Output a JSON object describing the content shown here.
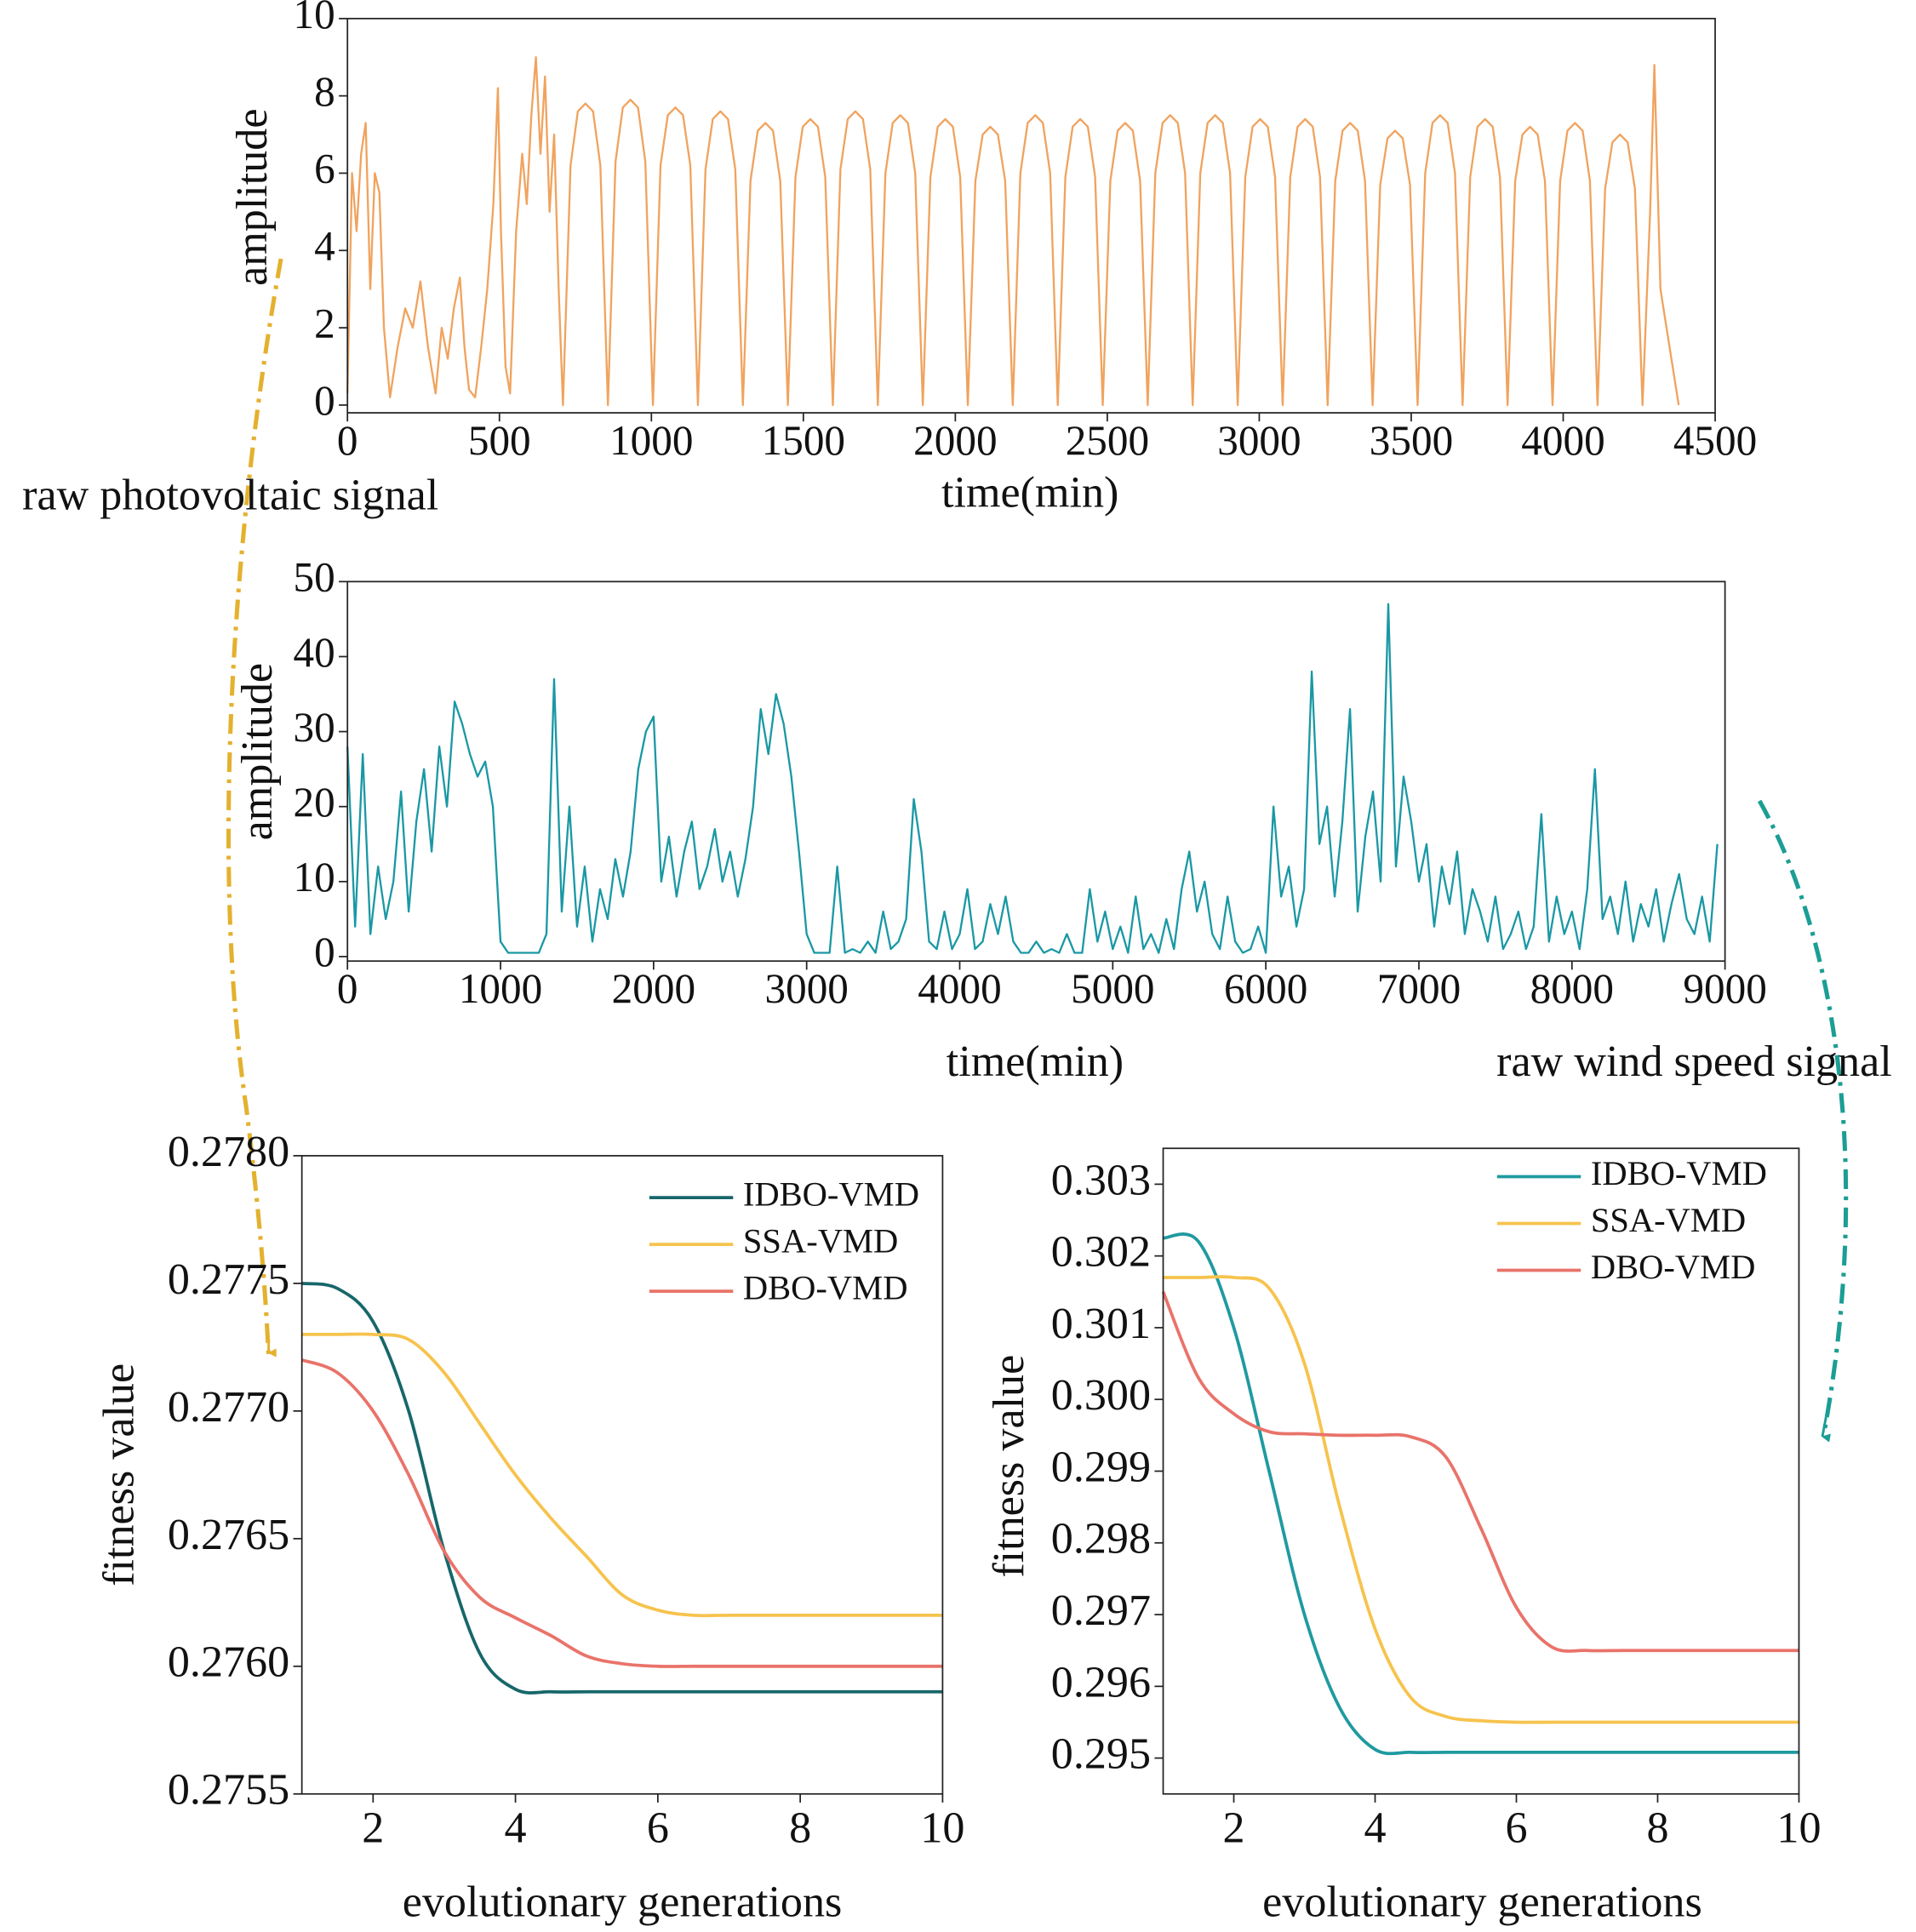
{
  "chart_data": [
    {
      "type": "line",
      "x_label": "time(min)",
      "y_label": "amplitude",
      "annotation": "raw photovoltaic signal",
      "color": "#f0a35e",
      "xlim": [
        0,
        4500
      ],
      "xticks": [
        0,
        500,
        1000,
        1500,
        2000,
        2500,
        3000,
        3500,
        4000,
        4500
      ],
      "ylim": [
        -0.2,
        10
      ],
      "yticks": [
        0,
        2,
        4,
        6,
        8,
        10
      ],
      "x": [
        0,
        15,
        30,
        45,
        60,
        75,
        90,
        105,
        120,
        140,
        165,
        190,
        215,
        240,
        265,
        290,
        310,
        330,
        350,
        370,
        385,
        400,
        420,
        440,
        460,
        480,
        495,
        505,
        520,
        535,
        555,
        575,
        590,
        605,
        620,
        635,
        650,
        665,
        680,
        695,
        709,
        734,
        758,
        783,
        808,
        832,
        857,
        882,
        906,
        931,
        956,
        980,
        1005,
        1030,
        1054,
        1079,
        1104,
        1128,
        1153,
        1178,
        1202,
        1227,
        1252,
        1276,
        1301,
        1326,
        1350,
        1375,
        1400,
        1424,
        1449,
        1474,
        1498,
        1523,
        1548,
        1572,
        1597,
        1622,
        1646,
        1671,
        1696,
        1720,
        1745,
        1770,
        1794,
        1819,
        1844,
        1868,
        1893,
        1918,
        1942,
        1967,
        1992,
        2016,
        2041,
        2066,
        2090,
        2115,
        2140,
        2164,
        2189,
        2214,
        2238,
        2263,
        2288,
        2312,
        2337,
        2362,
        2386,
        2411,
        2436,
        2460,
        2485,
        2510,
        2534,
        2559,
        2584,
        2608,
        2633,
        2658,
        2682,
        2707,
        2732,
        2756,
        2781,
        2806,
        2830,
        2855,
        2880,
        2904,
        2929,
        2954,
        2978,
        3003,
        3028,
        3052,
        3077,
        3102,
        3126,
        3151,
        3176,
        3200,
        3225,
        3250,
        3274,
        3299,
        3324,
        3348,
        3373,
        3398,
        3422,
        3447,
        3472,
        3496,
        3521,
        3546,
        3570,
        3595,
        3620,
        3644,
        3669,
        3694,
        3718,
        3743,
        3768,
        3792,
        3817,
        3842,
        3866,
        3891,
        3916,
        3940,
        3965,
        3990,
        4014,
        4039,
        4064,
        4088,
        4113,
        4138,
        4162,
        4187,
        4212,
        4236,
        4261,
        4286,
        4300,
        4320,
        4340,
        4360,
        4380
      ],
      "values": [
        0.3,
        6,
        4.5,
        6.5,
        7.3,
        3,
        6,
        5.5,
        2,
        0.2,
        1.5,
        2.5,
        2,
        3.2,
        1.5,
        0.3,
        2,
        1.2,
        2.5,
        3.3,
        1.5,
        0.4,
        0.2,
        1.5,
        3,
        5.2,
        8.2,
        4.5,
        1,
        0.3,
        4.5,
        6.5,
        5.2,
        7.5,
        9,
        6.5,
        8.5,
        5,
        7,
        3,
        0,
        6.2,
        7.6,
        7.8,
        7.6,
        6.2,
        0,
        6.3,
        7.7,
        7.9,
        7.7,
        6.3,
        0,
        6.2,
        7.5,
        7.7,
        7.5,
        6.2,
        0,
        6.1,
        7.4,
        7.6,
        7.4,
        6.1,
        0,
        5.8,
        7.1,
        7.3,
        7.1,
        5.8,
        0,
        5.9,
        7.2,
        7.4,
        7.2,
        5.9,
        0,
        6.1,
        7.4,
        7.6,
        7.4,
        6.1,
        0,
        6.0,
        7.3,
        7.5,
        7.3,
        6.0,
        0,
        5.9,
        7.2,
        7.4,
        7.2,
        5.9,
        0,
        5.8,
        7.0,
        7.2,
        7.0,
        5.8,
        0,
        6.0,
        7.3,
        7.5,
        7.3,
        6.0,
        0,
        5.9,
        7.2,
        7.4,
        7.2,
        5.9,
        0,
        5.8,
        7.1,
        7.3,
        7.1,
        5.8,
        0,
        6.0,
        7.3,
        7.5,
        7.3,
        6.0,
        0,
        6.0,
        7.3,
        7.5,
        7.3,
        6.0,
        0,
        5.9,
        7.2,
        7.4,
        7.2,
        5.9,
        0,
        5.9,
        7.2,
        7.4,
        7.2,
        5.9,
        0,
        5.8,
        7.1,
        7.3,
        7.1,
        5.8,
        0,
        5.7,
        6.9,
        7.1,
        6.9,
        5.7,
        0,
        6.0,
        7.3,
        7.5,
        7.3,
        6.0,
        0,
        5.9,
        7.2,
        7.4,
        7.2,
        5.9,
        0,
        5.8,
        7.0,
        7.2,
        7.0,
        5.8,
        0,
        5.8,
        7.1,
        7.3,
        7.1,
        5.8,
        0,
        5.6,
        6.8,
        7.0,
        6.8,
        5.6,
        0,
        5,
        8.8,
        3,
        2,
        1,
        0
      ]
    },
    {
      "type": "line",
      "x_label": "time(min)",
      "y_label": "amplitude",
      "annotation": "raw wind speed signal",
      "color": "#1a98a4",
      "xlim": [
        0,
        9000
      ],
      "xticks": [
        0,
        1000,
        2000,
        3000,
        4000,
        5000,
        6000,
        7000,
        8000,
        9000
      ],
      "ylim": [
        -0.6,
        50
      ],
      "yticks": [
        0,
        10,
        20,
        30,
        40,
        50
      ],
      "x": [
        0,
        50,
        100,
        150,
        200,
        250,
        300,
        350,
        400,
        450,
        500,
        550,
        600,
        650,
        700,
        750,
        800,
        850,
        900,
        950,
        1000,
        1050,
        1100,
        1150,
        1200,
        1250,
        1300,
        1350,
        1400,
        1450,
        1500,
        1550,
        1600,
        1650,
        1700,
        1750,
        1800,
        1850,
        1900,
        1950,
        2000,
        2050,
        2100,
        2150,
        2200,
        2250,
        2300,
        2350,
        2400,
        2450,
        2500,
        2550,
        2600,
        2650,
        2700,
        2750,
        2800,
        2850,
        2900,
        2950,
        3000,
        3050,
        3100,
        3150,
        3200,
        3250,
        3300,
        3350,
        3400,
        3450,
        3500,
        3550,
        3600,
        3650,
        3700,
        3750,
        3800,
        3850,
        3900,
        3950,
        4000,
        4050,
        4100,
        4150,
        4200,
        4250,
        4300,
        4350,
        4400,
        4450,
        4500,
        4550,
        4600,
        4650,
        4700,
        4750,
        4800,
        4850,
        4900,
        4950,
        5000,
        5050,
        5100,
        5150,
        5200,
        5250,
        5300,
        5350,
        5400,
        5450,
        5500,
        5550,
        5600,
        5650,
        5700,
        5750,
        5800,
        5850,
        5900,
        5950,
        6000,
        6050,
        6100,
        6150,
        6200,
        6250,
        6300,
        6350,
        6400,
        6450,
        6500,
        6550,
        6600,
        6650,
        6700,
        6750,
        6800,
        6850,
        6900,
        6950,
        7000,
        7050,
        7100,
        7150,
        7200,
        7250,
        7300,
        7350,
        7400,
        7450,
        7500,
        7550,
        7600,
        7650,
        7700,
        7750,
        7800,
        7850,
        7900,
        7950,
        8000,
        8050,
        8100,
        8150,
        8200,
        8250,
        8300,
        8350,
        8400,
        8450,
        8500,
        8550,
        8600,
        8650,
        8700,
        8750,
        8800,
        8850,
        8900,
        8950
      ],
      "values": [
        28,
        4,
        27,
        3,
        12,
        5,
        10,
        22,
        6,
        18,
        25,
        14,
        28,
        20,
        34,
        31,
        27,
        24,
        26,
        20,
        2,
        0.5,
        0.5,
        0.5,
        0.5,
        0.5,
        3,
        37,
        6,
        20,
        4,
        12,
        2,
        9,
        5,
        13,
        8,
        14,
        25,
        30,
        32,
        10,
        16,
        8,
        14,
        18,
        9,
        12,
        17,
        10,
        14,
        8,
        13,
        20,
        33,
        27,
        35,
        31,
        24,
        14,
        3,
        0.5,
        0.5,
        0.5,
        12,
        0.5,
        1,
        0.5,
        2,
        0.5,
        6,
        1,
        2,
        5,
        21,
        14,
        2,
        1,
        6,
        1,
        3,
        9,
        1,
        2,
        7,
        3,
        8,
        2,
        0.5,
        0.5,
        2,
        0.5,
        1,
        0.5,
        3,
        0.5,
        0.5,
        9,
        2,
        6,
        1,
        4,
        0.5,
        8,
        1,
        3,
        0.5,
        5,
        1,
        9,
        14,
        6,
        10,
        3,
        1,
        8,
        2,
        0.5,
        1,
        4,
        0.5,
        20,
        8,
        12,
        4,
        9,
        38,
        15,
        20,
        8,
        18,
        33,
        6,
        16,
        22,
        10,
        47,
        12,
        24,
        18,
        10,
        15,
        4,
        12,
        7,
        14,
        3,
        9,
        6,
        2,
        8,
        1,
        3,
        6,
        1,
        4,
        19,
        2,
        8,
        3,
        6,
        1,
        9,
        25,
        5,
        8,
        3,
        10,
        2,
        7,
        4,
        9,
        2,
        7,
        11,
        5,
        3,
        8,
        2,
        15
      ]
    },
    {
      "type": "line",
      "x_label": "evolutionary generations",
      "y_label": "fitness value",
      "legend": "upper right",
      "xlim": [
        1,
        10
      ],
      "xticks": [
        2,
        4,
        6,
        8,
        10
      ],
      "ylim": [
        0.2755,
        0.278
      ],
      "yticks": [
        0.2755,
        {
          "value": 0.276,
          "label": "0.2760"
        },
        0.2765,
        {
          "value": 0.277,
          "label": "0.2770"
        },
        0.2775,
        {
          "value": 0.278,
          "label": "0.2780"
        }
      ],
      "x": [
        1,
        1.5,
        2,
        2.5,
        3,
        3.5,
        4,
        4.5,
        5,
        5.5,
        6,
        6.5,
        7,
        7.5,
        8,
        8.5,
        9,
        9.5,
        10
      ],
      "series": [
        {
          "name": "IDBO-VMD",
          "color": "#17676a",
          "values": [
            0.2775,
            0.27748,
            0.27735,
            0.277,
            0.27645,
            0.27605,
            0.27591,
            0.2759,
            0.2759,
            0.2759,
            0.2759,
            0.2759,
            0.2759,
            0.2759,
            0.2759,
            0.2759,
            0.2759,
            0.2759,
            0.2759
          ]
        },
        {
          "name": "SSA-VMD",
          "color": "#f6c34d",
          "values": [
            0.2773,
            0.2773,
            0.2773,
            0.27728,
            0.27715,
            0.27695,
            0.27675,
            0.27658,
            0.27643,
            0.27628,
            0.27622,
            0.2762,
            0.2762,
            0.2762,
            0.2762,
            0.2762,
            0.2762,
            0.2762,
            0.2762
          ]
        },
        {
          "name": "DBO-VMD",
          "color": "#e9736a",
          "values": [
            0.2772,
            0.27715,
            0.277,
            0.27675,
            0.27645,
            0.27627,
            0.27619,
            0.27612,
            0.27604,
            0.27601,
            0.276,
            0.276,
            0.276,
            0.276,
            0.276,
            0.276,
            0.276,
            0.276,
            0.276
          ]
        }
      ]
    },
    {
      "type": "line",
      "x_label": "evolutionary generations",
      "y_label": "fitness value",
      "legend": "upper right",
      "xlim": [
        1,
        10
      ],
      "xticks": [
        2,
        4,
        6,
        8,
        10
      ],
      "ylim": [
        0.2945,
        0.3035
      ],
      "yticks": [
        0.295,
        0.296,
        0.297,
        0.298,
        0.299,
        {
          "value": 0.3,
          "label": "0.300"
        },
        0.301,
        0.302,
        0.303
      ],
      "x": [
        1,
        1.5,
        2,
        2.5,
        3,
        3.5,
        4,
        4.5,
        5,
        5.5,
        6,
        6.5,
        7,
        7.5,
        8,
        8.5,
        9,
        9.5,
        10
      ],
      "series": [
        {
          "name": "IDBO-VMD",
          "color": "#1f9aa0",
          "values": [
            0.30225,
            0.3022,
            0.301,
            0.299,
            0.297,
            0.2957,
            0.29512,
            0.29508,
            0.29508,
            0.29508,
            0.29508,
            0.29508,
            0.29508,
            0.29508,
            0.29508,
            0.29508,
            0.29508,
            0.29508,
            0.29508
          ]
        },
        {
          "name": "SSA-VMD",
          "color": "#f6c34d",
          "values": [
            0.3017,
            0.3017,
            0.3017,
            0.30155,
            0.3005,
            0.2985,
            0.2968,
            0.29585,
            0.29558,
            0.29552,
            0.2955,
            0.2955,
            0.2955,
            0.2955,
            0.2955,
            0.2955,
            0.2955,
            0.2955,
            0.2955
          ]
        },
        {
          "name": "DBO-VMD",
          "color": "#e9736a",
          "values": [
            0.3015,
            0.3003,
            0.2998,
            0.29955,
            0.29952,
            0.2995,
            0.2995,
            0.29948,
            0.2992,
            0.2982,
            0.2971,
            0.29655,
            0.2965,
            0.2965,
            0.2965,
            0.2965,
            0.2965,
            0.2965,
            0.2965
          ]
        }
      ]
    }
  ]
}
